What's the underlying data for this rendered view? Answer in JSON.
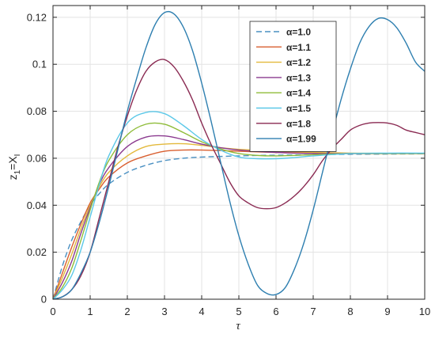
{
  "chart_data": {
    "type": "line",
    "xlabel": "τ",
    "ylabel_main": "z",
    "ylabel_sub1": "1",
    "ylabel_mid": "=X",
    "ylabel_sub2": "I",
    "xlim": [
      0,
      10
    ],
    "ylim": [
      0,
      0.125
    ],
    "xticks": [
      "0",
      "1",
      "2",
      "3",
      "4",
      "5",
      "6",
      "7",
      "8",
      "9",
      "10"
    ],
    "yticks": [
      "0",
      "0.02",
      "0.04",
      "0.06",
      "0.08",
      "0.1",
      "0.12"
    ],
    "grid": true,
    "legend_position": "top-right",
    "series": [
      {
        "name": "α=1.0",
        "color": "#4a90c2",
        "dash": true,
        "x": [
          0,
          0.25,
          0.5,
          0.75,
          1,
          1.25,
          1.5,
          2,
          2.5,
          3,
          3.5,
          4,
          5,
          6,
          7,
          8,
          9,
          10
        ],
        "y": [
          0,
          0.014,
          0.025,
          0.033,
          0.04,
          0.045,
          0.049,
          0.054,
          0.057,
          0.059,
          0.06,
          0.0605,
          0.061,
          0.0613,
          0.0615,
          0.0617,
          0.0618,
          0.0619
        ]
      },
      {
        "name": "α=1.1",
        "color": "#d95f30",
        "x": [
          0,
          0.25,
          0.5,
          0.75,
          1,
          1.25,
          1.5,
          2,
          2.5,
          3,
          3.5,
          4,
          5,
          6,
          7,
          8,
          9,
          10
        ],
        "y": [
          0,
          0.011,
          0.022,
          0.032,
          0.041,
          0.047,
          0.052,
          0.058,
          0.061,
          0.063,
          0.0635,
          0.0635,
          0.063,
          0.0625,
          0.0622,
          0.062,
          0.062,
          0.062
        ]
      },
      {
        "name": "α=1.2",
        "color": "#e3b93c",
        "x": [
          0,
          0.25,
          0.5,
          0.75,
          1,
          1.25,
          1.5,
          2,
          2.5,
          3,
          3.5,
          4,
          4.5,
          5,
          6,
          7,
          8,
          9,
          10
        ],
        "y": [
          0,
          0.009,
          0.019,
          0.03,
          0.04,
          0.048,
          0.054,
          0.061,
          0.065,
          0.066,
          0.0662,
          0.0655,
          0.0645,
          0.0638,
          0.063,
          0.0625,
          0.0622,
          0.0621,
          0.0621
        ]
      },
      {
        "name": "α=1.3",
        "color": "#8b3a8f",
        "x": [
          0,
          0.25,
          0.5,
          0.75,
          1,
          1.25,
          1.5,
          2,
          2.5,
          3,
          3.5,
          4,
          4.5,
          5,
          6,
          7,
          8,
          9,
          10
        ],
        "y": [
          0,
          0.007,
          0.016,
          0.028,
          0.039,
          0.049,
          0.056,
          0.065,
          0.069,
          0.0695,
          0.068,
          0.066,
          0.0645,
          0.0635,
          0.0625,
          0.062,
          0.062,
          0.062,
          0.062
        ]
      },
      {
        "name": "α=1.4",
        "color": "#8fbc3a",
        "x": [
          0,
          0.25,
          0.5,
          0.75,
          1,
          1.25,
          1.5,
          2,
          2.5,
          3,
          3.5,
          4,
          4.5,
          5,
          5.5,
          6,
          7,
          8,
          9,
          10
        ],
        "y": [
          0,
          0.005,
          0.013,
          0.025,
          0.038,
          0.05,
          0.059,
          0.07,
          0.0745,
          0.0745,
          0.071,
          0.067,
          0.064,
          0.062,
          0.0612,
          0.061,
          0.0615,
          0.062,
          0.062,
          0.062
        ]
      },
      {
        "name": "α=1.5",
        "color": "#5bc8e8",
        "x": [
          0,
          0.25,
          0.5,
          0.75,
          1,
          1.25,
          1.5,
          2,
          2.5,
          3,
          3.5,
          4,
          4.5,
          5,
          5.5,
          6,
          6.5,
          7,
          8,
          9,
          10
        ],
        "y": [
          0,
          0.004,
          0.01,
          0.021,
          0.035,
          0.049,
          0.061,
          0.075,
          0.0795,
          0.079,
          0.074,
          0.068,
          0.0635,
          0.0605,
          0.0598,
          0.0598,
          0.0603,
          0.061,
          0.062,
          0.0622,
          0.0622
        ]
      },
      {
        "name": "α=1.8",
        "color": "#8a2a52",
        "x": [
          0,
          0.25,
          0.5,
          0.75,
          1,
          1.25,
          1.5,
          1.75,
          2,
          2.25,
          2.5,
          2.75,
          3,
          3.25,
          3.5,
          3.75,
          4,
          4.25,
          4.5,
          4.75,
          5,
          5.25,
          5.5,
          5.75,
          6,
          6.25,
          6.5,
          6.75,
          7,
          7.25,
          7.5,
          7.75,
          8,
          8.25,
          8.5,
          8.75,
          9,
          9.25,
          9.5,
          9.75,
          10
        ],
        "y": [
          0,
          0.001,
          0.004,
          0.01,
          0.02,
          0.035,
          0.05,
          0.065,
          0.078,
          0.089,
          0.097,
          0.101,
          0.102,
          0.099,
          0.093,
          0.085,
          0.075,
          0.066,
          0.058,
          0.05,
          0.044,
          0.041,
          0.039,
          0.0385,
          0.039,
          0.041,
          0.044,
          0.048,
          0.053,
          0.059,
          0.064,
          0.068,
          0.072,
          0.074,
          0.075,
          0.0752,
          0.075,
          0.074,
          0.072,
          0.071,
          0.07
        ]
      },
      {
        "name": "α=1.99",
        "color": "#2e7fb0",
        "x": [
          0,
          0.25,
          0.5,
          0.75,
          1,
          1.25,
          1.5,
          1.75,
          2,
          2.25,
          2.5,
          2.75,
          3,
          3.25,
          3.5,
          3.75,
          4,
          4.25,
          4.5,
          4.75,
          5,
          5.25,
          5.5,
          5.75,
          6,
          6.25,
          6.5,
          6.75,
          7,
          7.25,
          7.5,
          7.75,
          8,
          8.25,
          8.5,
          8.75,
          9,
          9.25,
          9.5,
          9.75,
          10
        ],
        "y": [
          0,
          0.001,
          0.004,
          0.011,
          0.02,
          0.033,
          0.048,
          0.064,
          0.08,
          0.094,
          0.107,
          0.117,
          0.122,
          0.1215,
          0.116,
          0.106,
          0.092,
          0.076,
          0.059,
          0.042,
          0.027,
          0.015,
          0.006,
          0.0025,
          0.002,
          0.005,
          0.013,
          0.024,
          0.038,
          0.054,
          0.07,
          0.085,
          0.098,
          0.109,
          0.116,
          0.1195,
          0.119,
          0.1155,
          0.109,
          0.101,
          0.097
        ]
      }
    ]
  }
}
